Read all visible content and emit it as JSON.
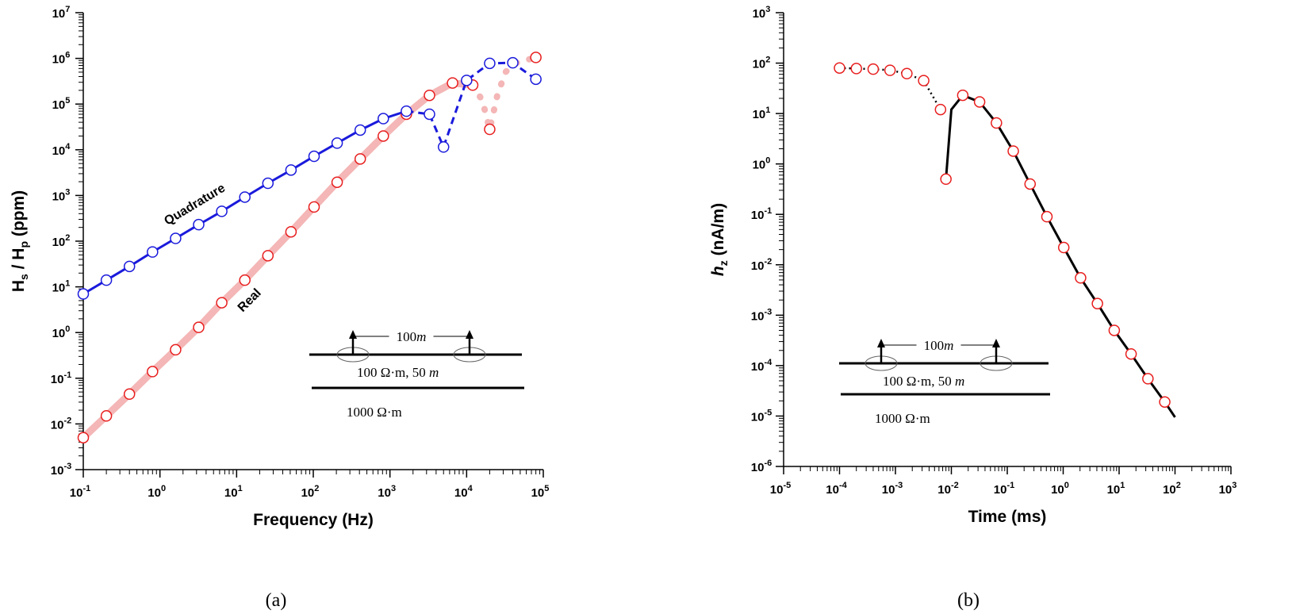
{
  "chart_data": [
    {
      "type": "scatter",
      "panel_label": "(a)",
      "xlabel": "Frequency (Hz)",
      "ylabel": {
        "base": "H",
        "sub1": "s",
        "mid": " / H",
        "sub2": "p",
        "tail": " (ppm)"
      },
      "x_scale": "log",
      "y_scale": "log",
      "xlim": [
        0.1,
        100000
      ],
      "ylim": [
        0.001,
        10000000
      ],
      "x_tick_exponents": [
        -1,
        0,
        1,
        2,
        3,
        4,
        5
      ],
      "y_tick_exponents": [
        -3,
        -2,
        -1,
        0,
        1,
        2,
        3,
        4,
        5,
        6,
        7
      ],
      "tick_base": "10",
      "colors": {
        "quadrature": "#1a1adc",
        "real_line": "#f4b6b6",
        "real_marker": "#e81e1e"
      },
      "annotations": [
        {
          "text": "Quadrature",
          "series": "quadrature"
        },
        {
          "text": "Real",
          "series": "real"
        }
      ],
      "series": [
        {
          "name": "Quadrature",
          "marker_color": "#1a1adc",
          "points": [
            [
              0.1,
              7
            ],
            [
              0.2,
              14
            ],
            [
              0.4,
              28
            ],
            [
              0.8,
              58
            ],
            [
              1.6,
              115
            ],
            [
              3.2,
              230
            ],
            [
              6.4,
              450
            ],
            [
              12.8,
              920
            ],
            [
              25.6,
              1850
            ],
            [
              51.2,
              3600
            ],
            [
              102.4,
              7200
            ],
            [
              204.8,
              14000
            ],
            [
              409.6,
              27000
            ],
            [
              819.2,
              48000
            ],
            [
              1638.4,
              70000
            ],
            [
              3276.8,
              60000
            ],
            [
              5000,
              11500
            ],
            [
              10000,
              330000
            ],
            [
              20000,
              780000
            ],
            [
              40000,
              800000
            ],
            [
              80000,
              350000
            ]
          ]
        },
        {
          "name": "Real",
          "marker_color": "#e81e1e",
          "points": [
            [
              0.1,
              0.005
            ],
            [
              0.2,
              0.015
            ],
            [
              0.4,
              0.045
            ],
            [
              0.8,
              0.14
            ],
            [
              1.6,
              0.42
            ],
            [
              3.2,
              1.3
            ],
            [
              6.4,
              4.5
            ],
            [
              12.8,
              14
            ],
            [
              25.6,
              48
            ],
            [
              51.2,
              160
            ],
            [
              102.4,
              560
            ],
            [
              204.8,
              1950
            ],
            [
              409.6,
              6300
            ],
            [
              819.2,
              20000
            ],
            [
              1638.4,
              60000
            ],
            [
              3276.8,
              155000
            ],
            [
              6553.6,
              290000
            ],
            [
              12000,
              260000
            ],
            [
              20000,
              28000
            ],
            [
              80000,
              1050000
            ]
          ]
        }
      ],
      "inset": {
        "distance_label": "100",
        "distance_unit": "m",
        "layer1_label": "100 Ω·m,   50",
        "layer1_unit": "m",
        "layer2_label": "1000 Ω·m",
        "unit_m": "m"
      }
    },
    {
      "type": "scatter",
      "panel_label": "(b)",
      "xlabel": "Time (ms)",
      "ylabel": {
        "italic": "h",
        "sub": "z",
        "tail": " (nA/m)"
      },
      "x_scale": "log",
      "y_scale": "log",
      "xlim": [
        1e-05,
        1000
      ],
      "ylim": [
        1e-06,
        1000
      ],
      "x_tick_exponents": [
        -5,
        -4,
        -3,
        -2,
        -1,
        0,
        1,
        2,
        3
      ],
      "y_tick_exponents": [
        -6,
        -5,
        -4,
        -3,
        -2,
        -1,
        0,
        1,
        2,
        3
      ],
      "tick_base": "10",
      "colors": {
        "line": "#000000",
        "marker": "#e81e1e"
      },
      "series": [
        {
          "name": "",
          "points": [
            [
              0.0001,
              80
            ],
            [
              0.0002,
              78
            ],
            [
              0.0004,
              76
            ],
            [
              0.0008,
              72
            ],
            [
              0.0016,
              62
            ],
            [
              0.0032,
              45
            ],
            [
              0.0064,
              12
            ],
            [
              0.008,
              0.5
            ],
            [
              0.016,
              23
            ],
            [
              0.032,
              17
            ],
            [
              0.064,
              6.5
            ],
            [
              0.128,
              1.8
            ],
            [
              0.256,
              0.4
            ],
            [
              0.512,
              0.09
            ],
            [
              1.024,
              0.022
            ],
            [
              2.048,
              0.0055
            ],
            [
              4.096,
              0.0017
            ],
            [
              8.192,
              0.0005
            ],
            [
              16.384,
              0.00017
            ],
            [
              32.768,
              5.5e-05
            ],
            [
              65.536,
              1.9e-05
            ]
          ]
        }
      ],
      "inset": {
        "distance_label": "100",
        "distance_unit": "m",
        "layer1_label": "100 Ω·m,   50",
        "layer1_unit": "m",
        "layer2_label": "1000 Ω·m",
        "unit_m": "m"
      }
    }
  ]
}
